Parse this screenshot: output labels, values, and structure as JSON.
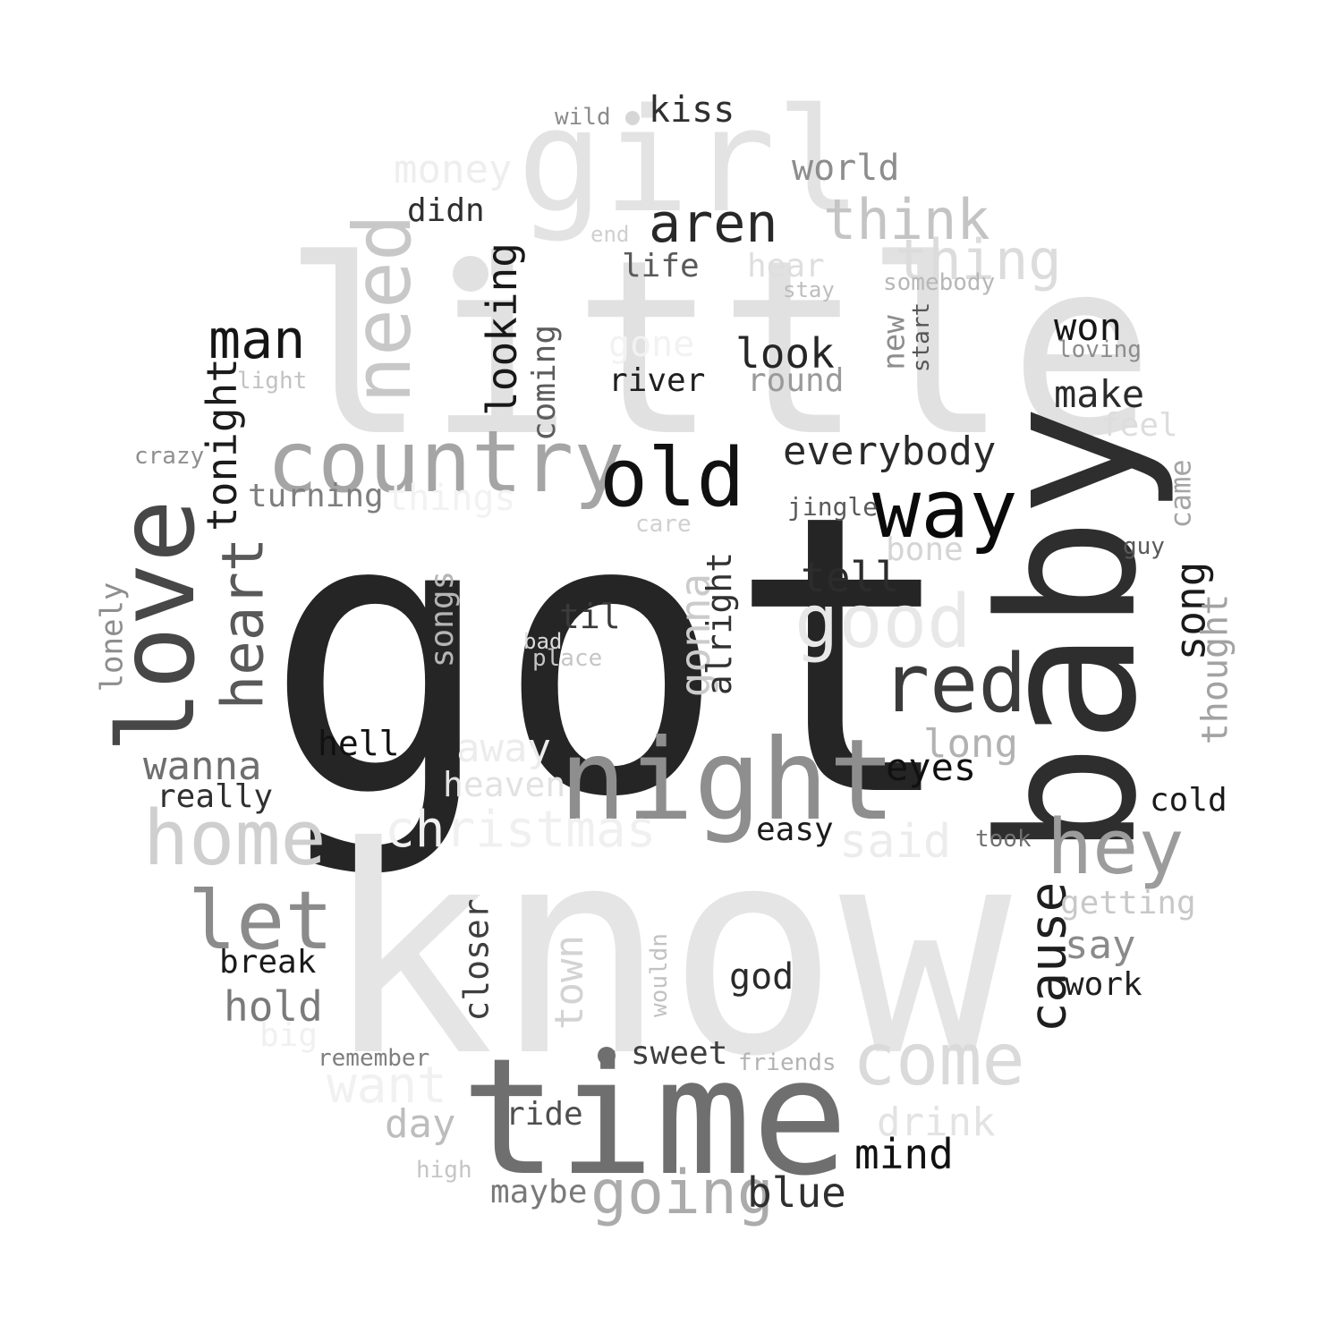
{
  "words": [
    {
      "text": "got",
      "color": "#252525",
      "rotate": 0
    },
    {
      "text": "know",
      "color": "#e5e5e5",
      "rotate": 0
    },
    {
      "text": "little",
      "color": "#e1e1e1",
      "rotate": 0
    },
    {
      "text": "baby",
      "color": "#2e2e2e",
      "rotate": -90
    },
    {
      "text": "time",
      "color": "#6f6f6f",
      "rotate": 0
    },
    {
      "text": "girl",
      "color": "#e3e3e3",
      "rotate": 0
    },
    {
      "text": "night",
      "color": "#8e8e8e",
      "rotate": 0
    },
    {
      "text": "love",
      "color": "#474747",
      "rotate": -90
    },
    {
      "text": "country",
      "color": "#a5a5a5",
      "rotate": 0
    },
    {
      "text": "old",
      "color": "#111111",
      "rotate": 0
    },
    {
      "text": "way",
      "color": "#0a0a0a",
      "rotate": 0
    },
    {
      "text": "need",
      "color": "#c8c8c8",
      "rotate": -90
    },
    {
      "text": "home",
      "color": "#cfcfcf",
      "rotate": 0
    },
    {
      "text": "good",
      "color": "#e8e8e8",
      "rotate": 0
    },
    {
      "text": "red",
      "color": "#3b3b3b",
      "rotate": 0
    },
    {
      "text": "come",
      "color": "#dadada",
      "rotate": 0
    },
    {
      "text": "hey",
      "color": "#9c9c9c",
      "rotate": 0
    },
    {
      "text": "let",
      "color": "#8b8b8b",
      "rotate": 0
    },
    {
      "text": "going",
      "color": "#ababab",
      "rotate": 0
    },
    {
      "text": "heart",
      "color": "#595959",
      "rotate": -90
    },
    {
      "text": "think",
      "color": "#c4c4c4",
      "rotate": 0
    },
    {
      "text": "thing",
      "color": "#dcdcdc",
      "rotate": 0
    },
    {
      "text": "man",
      "color": "#151515",
      "rotate": 0
    },
    {
      "text": "aren",
      "color": "#282828",
      "rotate": 0
    },
    {
      "text": "cause",
      "color": "#1e1e1e",
      "rotate": -90
    },
    {
      "text": "christmas",
      "color": "#f0f0f0",
      "rotate": 0
    },
    {
      "text": "money",
      "color": "#eeeeee",
      "rotate": 0
    },
    {
      "text": "world",
      "color": "#8d8d8d",
      "rotate": 0
    },
    {
      "text": "kiss",
      "color": "#2f2f2f",
      "rotate": 0
    },
    {
      "text": "wild",
      "color": "#8b8b8b",
      "rotate": 0
    },
    {
      "text": "didn",
      "color": "#2f2f2f",
      "rotate": 0
    },
    {
      "text": "end",
      "color": "#cfcfcf",
      "rotate": 0
    },
    {
      "text": "life",
      "color": "#5a5a5a",
      "rotate": 0
    },
    {
      "text": "hear",
      "color": "#dedede",
      "rotate": 0
    },
    {
      "text": "stay",
      "color": "#bdbdbd",
      "rotate": 0
    },
    {
      "text": "somebody",
      "color": "#b7b7b7",
      "rotate": 0
    },
    {
      "text": "looking",
      "color": "#181818",
      "rotate": -90
    },
    {
      "text": "coming",
      "color": "#5c5c5c",
      "rotate": -90
    },
    {
      "text": "gone",
      "color": "#f2f2f2",
      "rotate": 0
    },
    {
      "text": "look",
      "color": "#262626",
      "rotate": 0
    },
    {
      "text": "round",
      "color": "#9a9a9a",
      "rotate": 0
    },
    {
      "text": "river",
      "color": "#1f1f1f",
      "rotate": 0
    },
    {
      "text": "new",
      "color": "#8e8e8e",
      "rotate": -90
    },
    {
      "text": "start",
      "color": "#565656",
      "rotate": -90
    },
    {
      "text": "won",
      "color": "#161616",
      "rotate": 0
    },
    {
      "text": "loving",
      "color": "#8c8c8c",
      "rotate": 0
    },
    {
      "text": "make",
      "color": "#2b2b2b",
      "rotate": 0
    },
    {
      "text": "feel",
      "color": "#dddddd",
      "rotate": 0
    },
    {
      "text": "light",
      "color": "#c2c2c2",
      "rotate": 0
    },
    {
      "text": "tonight",
      "color": "#1c1c1c",
      "rotate": -90
    },
    {
      "text": "crazy",
      "color": "#8f8f8f",
      "rotate": 0
    },
    {
      "text": "turning",
      "color": "#7e7e7e",
      "rotate": 0
    },
    {
      "text": "things",
      "color": "#f2f2f2",
      "rotate": 0
    },
    {
      "text": "everybody",
      "color": "#2a2a2a",
      "rotate": 0
    },
    {
      "text": "jingle",
      "color": "#5a5a5a",
      "rotate": 0
    },
    {
      "text": "care",
      "color": "#d0d0d0",
      "rotate": 0
    },
    {
      "text": "bone",
      "color": "#d5d5d5",
      "rotate": 0
    },
    {
      "text": "came",
      "color": "#a4a4a4",
      "rotate": -90
    },
    {
      "text": "guy",
      "color": "#585858",
      "rotate": 0
    },
    {
      "text": "tell",
      "color": "#2c2c2c",
      "rotate": 0
    },
    {
      "text": "gonna",
      "color": "#cbcbcb",
      "rotate": -90
    },
    {
      "text": "alright",
      "color": "#313131",
      "rotate": -90
    },
    {
      "text": "til",
      "color": "#3a3a3a",
      "rotate": 0
    },
    {
      "text": "bad",
      "color": "#dcdcdc",
      "rotate": 0
    },
    {
      "text": "place",
      "color": "#c6c6c6",
      "rotate": 0
    },
    {
      "text": "songs",
      "color": "#b5b5b5",
      "rotate": -90
    },
    {
      "text": "lonely",
      "color": "#8e8e8e",
      "rotate": -90
    },
    {
      "text": "song",
      "color": "#1a1a1a",
      "rotate": -90
    },
    {
      "text": "thought",
      "color": "#a2a2a2",
      "rotate": -90
    },
    {
      "text": "hell",
      "color": "#111111",
      "rotate": 0
    },
    {
      "text": "away",
      "color": "#ececec",
      "rotate": 0
    },
    {
      "text": "heaven",
      "color": "#e2e2e2",
      "rotate": 0
    },
    {
      "text": "long",
      "color": "#b2b2b2",
      "rotate": 0
    },
    {
      "text": "eyes",
      "color": "#111111",
      "rotate": 0
    },
    {
      "text": "wanna",
      "color": "#6f6f6f",
      "rotate": 0
    },
    {
      "text": "really",
      "color": "#303030",
      "rotate": 0
    },
    {
      "text": "cold",
      "color": "#1a1a1a",
      "rotate": 0
    },
    {
      "text": "easy",
      "color": "#1c1c1c",
      "rotate": 0
    },
    {
      "text": "said",
      "color": "#ececec",
      "rotate": 0
    },
    {
      "text": "took",
      "color": "#717171",
      "rotate": 0
    },
    {
      "text": "getting",
      "color": "#c8c8c8",
      "rotate": 0
    },
    {
      "text": "say",
      "color": "#8a8a8a",
      "rotate": 0
    },
    {
      "text": "work",
      "color": "#1f1f1f",
      "rotate": 0
    },
    {
      "text": "break",
      "color": "#1b1b1b",
      "rotate": 0
    },
    {
      "text": "hold",
      "color": "#7a7a7a",
      "rotate": 0
    },
    {
      "text": "closer",
      "color": "#3f3f3f",
      "rotate": -90
    },
    {
      "text": "town",
      "color": "#d3d3d3",
      "rotate": -90
    },
    {
      "text": "wouldn",
      "color": "#c2c2c2",
      "rotate": -90
    },
    {
      "text": "god",
      "color": "#2a2a2a",
      "rotate": 0
    },
    {
      "text": "big",
      "color": "#f0f0f0",
      "rotate": 0
    },
    {
      "text": "remember",
      "color": "#7f7f7f",
      "rotate": 0
    },
    {
      "text": "sweet",
      "color": "#3e3e3e",
      "rotate": 0
    },
    {
      "text": "friends",
      "color": "#b3b3b3",
      "rotate": 0
    },
    {
      "text": "want",
      "color": "#f1f1f1",
      "rotate": 0
    },
    {
      "text": "drink",
      "color": "#e3e3e3",
      "rotate": 0
    },
    {
      "text": "day",
      "color": "#bdbdbd",
      "rotate": 0
    },
    {
      "text": "ride",
      "color": "#4f4f4f",
      "rotate": 0
    },
    {
      "text": "mind",
      "color": "#111111",
      "rotate": 0
    },
    {
      "text": "high",
      "color": "#c5c5c5",
      "rotate": 0
    },
    {
      "text": "maybe",
      "color": "#7a7a7a",
      "rotate": 0
    },
    {
      "text": "blue",
      "color": "#2f2f2f",
      "rotate": 0
    }
  ]
}
